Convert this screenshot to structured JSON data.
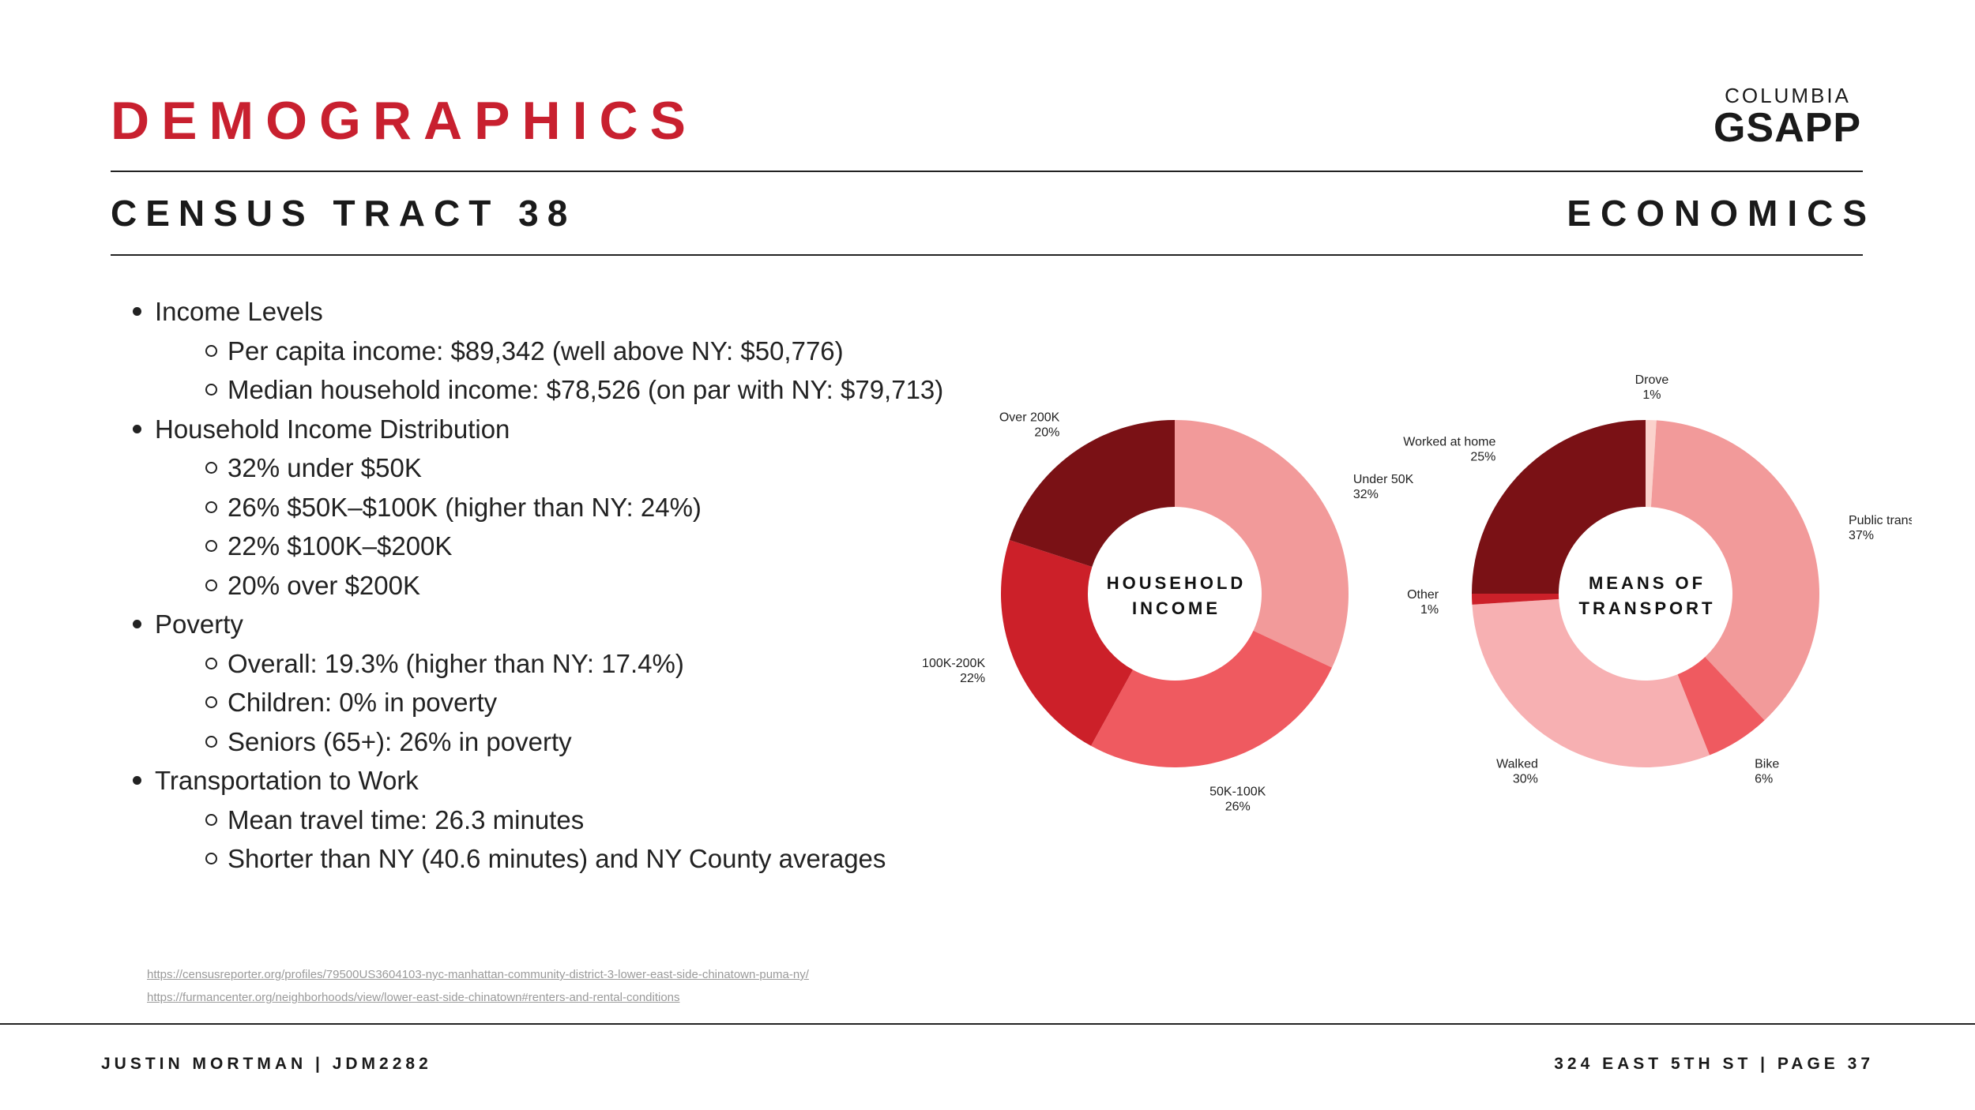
{
  "header": {
    "title": "DEMOGRAPHICS",
    "title_color": "#c8202f",
    "logo_top": "COLUMBIA",
    "logo_main": "GSAPP",
    "left_subtitle": "CENSUS TRACT 38",
    "right_subtitle": "ECONOMICS"
  },
  "bullets": {
    "income": {
      "label": "Income Levels",
      "items": [
        "Per capita income: $89,342 (well above NY: $50,776)",
        "Median household income: $78,526 (on par with NY: $79,713)"
      ]
    },
    "distribution": {
      "label": "Household Income Distribution",
      "items": [
        "32% under $50K",
        "26% $50K–$100K (higher than NY: 24%)",
        "22% $100K–$200K",
        "20% over $200K"
      ]
    },
    "poverty": {
      "label": "Poverty",
      "items": [
        "Overall: 19.3% (higher than NY: 17.4%)",
        "Children: 0% in poverty",
        "Seniors (65+): 26% in poverty"
      ]
    },
    "transport": {
      "label": "Transportation to Work",
      "items": [
        "Mean travel time: 26.3 minutes",
        "Shorter than NY (40.6 minutes) and NY County averages"
      ]
    }
  },
  "links": [
    "https://censusreporter.org/profiles/79500US3604103-nyc-manhattan-community-district-3-lower-east-side-chinatown-puma-ny/",
    "https://furmancenter.org/neighborhoods/view/lower-east-side-chinatown#renters-and-rental-conditions"
  ],
  "footer": {
    "left": "JUSTIN MORTMAN | JDM2282",
    "right": "324 EAST 5TH ST | PAGE 37"
  },
  "chart_data": [
    {
      "type": "pie",
      "title": "HOUSEHOLD INCOME",
      "center_lines": [
        "HOUSEHOLD",
        "INCOME"
      ],
      "categories": [
        "Under 50K",
        "50K-100K",
        "100K-200K",
        "Over 200K"
      ],
      "values": [
        32,
        26,
        22,
        20
      ],
      "value_labels": [
        "32%",
        "26%",
        "22%",
        "20%"
      ],
      "colors": [
        "#f29a9a",
        "#ef5a60",
        "#cc2029",
        "#7a1115"
      ]
    },
    {
      "type": "pie",
      "title": "MEANS OF TRANSPORT",
      "center_lines": [
        "MEANS OF",
        "TRANSPORT"
      ],
      "categories": [
        "Drove",
        "Public transit",
        "Bike",
        "Walked",
        "Other",
        "Worked at home"
      ],
      "values": [
        1,
        37,
        6,
        30,
        1,
        25
      ],
      "value_labels": [
        "1%",
        "37%",
        "6%",
        "30%",
        "1%",
        "25%"
      ],
      "colors": [
        "#fbd2cc",
        "#f29a9a",
        "#ef5a60",
        "#f7b0b2",
        "#cc2029",
        "#7a1115"
      ]
    }
  ]
}
